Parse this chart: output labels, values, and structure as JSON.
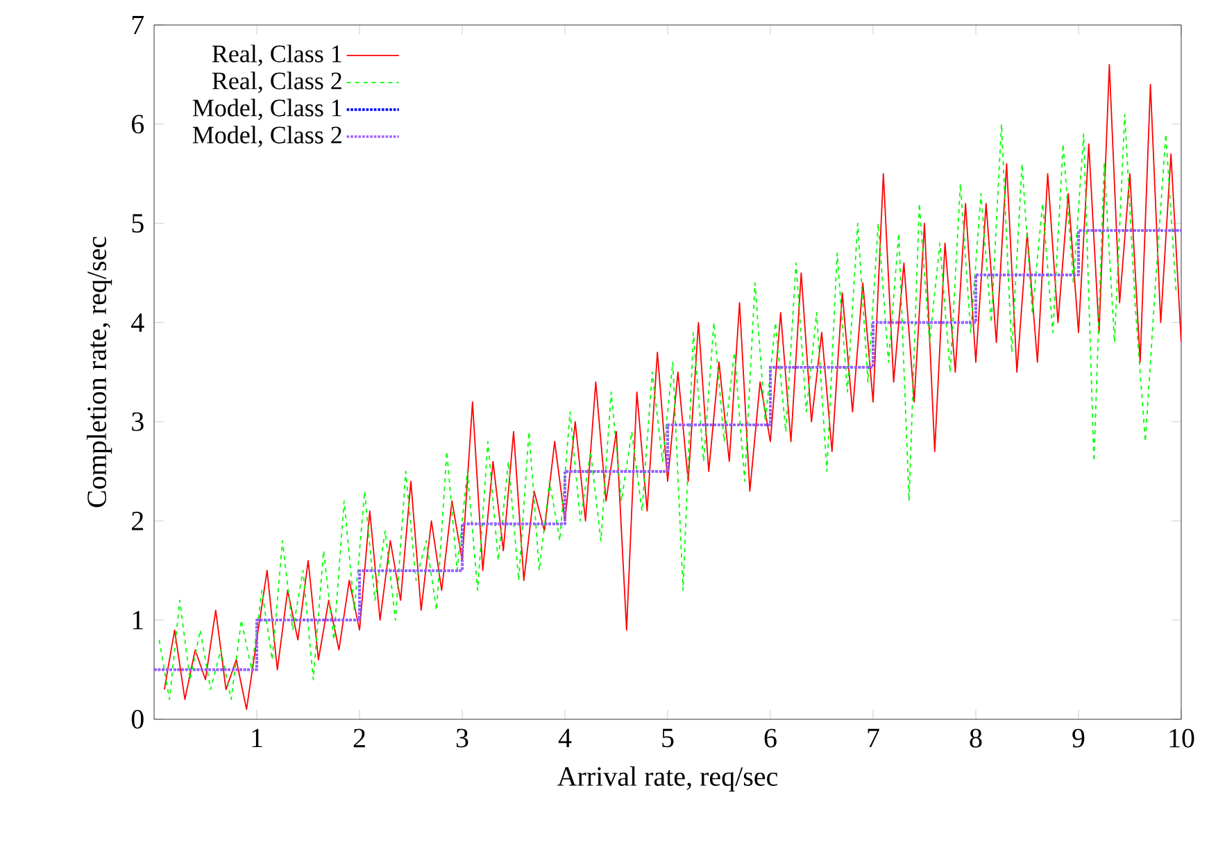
{
  "chart_data": {
    "type": "line",
    "xlabel": "Arrival rate, req/sec",
    "ylabel": "Completion rate, req/sec",
    "xlim": [
      0,
      10
    ],
    "ylim": [
      0,
      7
    ],
    "xticks": [
      1,
      2,
      3,
      4,
      5,
      6,
      7,
      8,
      9,
      10
    ],
    "yticks": [
      0,
      1,
      2,
      3,
      4,
      5,
      6,
      7
    ],
    "legend": "top left",
    "grid": false,
    "series": [
      {
        "name": "Real, Class 1",
        "color": "#ff0000",
        "line_style": "solid",
        "x": [
          0.1,
          0.2,
          0.3,
          0.4,
          0.5,
          0.6,
          0.7,
          0.8,
          0.9,
          1.0,
          1.1,
          1.2,
          1.3,
          1.4,
          1.5,
          1.6,
          1.7,
          1.8,
          1.9,
          2.0,
          2.1,
          2.2,
          2.3,
          2.4,
          2.5,
          2.6,
          2.7,
          2.8,
          2.9,
          3.0,
          3.1,
          3.2,
          3.3,
          3.4,
          3.5,
          3.6,
          3.7,
          3.8,
          3.9,
          4.0,
          4.1,
          4.2,
          4.3,
          4.4,
          4.5,
          4.6,
          4.7,
          4.8,
          4.9,
          5.0,
          5.1,
          5.2,
          5.3,
          5.4,
          5.5,
          5.6,
          5.7,
          5.8,
          5.9,
          6.0,
          6.1,
          6.2,
          6.3,
          6.4,
          6.5,
          6.6,
          6.7,
          6.8,
          6.9,
          7.0,
          7.1,
          7.2,
          7.3,
          7.4,
          7.5,
          7.6,
          7.7,
          7.8,
          7.9,
          8.0,
          8.1,
          8.2,
          8.3,
          8.4,
          8.5,
          8.6,
          8.7,
          8.8,
          8.9,
          9.0,
          9.1,
          9.2,
          9.3,
          9.4,
          9.5,
          9.6,
          9.7,
          9.8,
          9.9,
          10.0
        ],
        "values": [
          0.3,
          0.9,
          0.2,
          0.7,
          0.4,
          1.1,
          0.3,
          0.6,
          0.1,
          0.8,
          1.5,
          0.5,
          1.3,
          0.8,
          1.6,
          0.6,
          1.2,
          0.7,
          1.4,
          0.9,
          2.1,
          1.0,
          1.8,
          1.2,
          2.4,
          1.1,
          2.0,
          1.3,
          2.2,
          1.6,
          3.2,
          1.5,
          2.6,
          1.7,
          2.9,
          1.4,
          2.3,
          1.9,
          2.8,
          2.0,
          3.0,
          2.0,
          3.4,
          2.2,
          2.9,
          0.9,
          3.3,
          2.1,
          3.7,
          2.4,
          3.5,
          2.4,
          4.0,
          2.5,
          3.6,
          2.6,
          4.2,
          2.3,
          3.4,
          2.8,
          4.1,
          2.8,
          4.5,
          3.0,
          3.9,
          2.7,
          4.3,
          3.1,
          4.4,
          3.2,
          5.5,
          3.4,
          4.6,
          3.2,
          5.0,
          2.7,
          4.8,
          3.5,
          5.2,
          3.6,
          5.2,
          3.8,
          5.6,
          3.5,
          4.9,
          3.6,
          5.5,
          4.0,
          5.3,
          3.9,
          5.8,
          3.9,
          6.6,
          4.2,
          5.5,
          3.6,
          6.4,
          4.0,
          5.7,
          3.8
        ]
      },
      {
        "name": "Real, Class 2",
        "color": "#00ff00",
        "line_style": "dashed",
        "x": [
          0.05,
          0.15,
          0.25,
          0.35,
          0.45,
          0.55,
          0.65,
          0.75,
          0.85,
          0.95,
          1.05,
          1.15,
          1.25,
          1.35,
          1.45,
          1.55,
          1.65,
          1.75,
          1.85,
          1.95,
          2.05,
          2.15,
          2.25,
          2.35,
          2.45,
          2.55,
          2.65,
          2.75,
          2.85,
          2.95,
          3.05,
          3.15,
          3.25,
          3.35,
          3.45,
          3.55,
          3.65,
          3.75,
          3.85,
          3.95,
          4.05,
          4.15,
          4.25,
          4.35,
          4.45,
          4.55,
          4.65,
          4.75,
          4.85,
          4.95,
          5.05,
          5.15,
          5.25,
          5.35,
          5.45,
          5.55,
          5.65,
          5.75,
          5.85,
          5.95,
          6.05,
          6.15,
          6.25,
          6.35,
          6.45,
          6.55,
          6.65,
          6.75,
          6.85,
          6.95,
          7.05,
          7.15,
          7.25,
          7.35,
          7.45,
          7.55,
          7.65,
          7.75,
          7.85,
          7.95,
          8.05,
          8.15,
          8.25,
          8.35,
          8.45,
          8.55,
          8.65,
          8.75,
          8.85,
          8.95,
          9.05,
          9.15,
          9.25,
          9.35,
          9.45,
          9.55,
          9.65,
          9.75,
          9.85,
          9.95
        ],
        "values": [
          0.8,
          0.2,
          1.2,
          0.4,
          0.9,
          0.3,
          0.7,
          0.2,
          1.0,
          0.5,
          1.3,
          0.6,
          1.8,
          0.9,
          1.5,
          0.4,
          1.7,
          0.8,
          2.2,
          1.1,
          2.3,
          1.2,
          1.9,
          1.0,
          2.5,
          1.4,
          1.8,
          1.1,
          2.7,
          1.5,
          2.5,
          1.3,
          2.8,
          1.6,
          2.6,
          1.4,
          2.9,
          1.5,
          2.4,
          1.8,
          3.1,
          2.0,
          2.7,
          1.8,
          3.3,
          2.2,
          2.9,
          2.1,
          3.5,
          2.6,
          3.6,
          1.3,
          3.9,
          2.6,
          4.0,
          2.8,
          3.7,
          2.4,
          4.4,
          3.0,
          4.0,
          2.9,
          4.6,
          3.1,
          4.1,
          2.5,
          4.7,
          3.3,
          5.0,
          3.4,
          5.0,
          3.6,
          4.9,
          2.2,
          5.2,
          3.8,
          4.8,
          3.5,
          5.4,
          3.9,
          5.3,
          4.0,
          6.0,
          3.7,
          5.6,
          4.1,
          5.2,
          3.9,
          5.8,
          4.4,
          5.9,
          2.6,
          5.6,
          3.8,
          6.1,
          4.2,
          2.8,
          4.4,
          5.9,
          4.3
        ]
      },
      {
        "name": "Model, Class 1",
        "type": "step",
        "color": "#0000ff",
        "line_style": "dotted",
        "x": [
          0,
          1,
          2,
          3,
          4,
          5,
          6,
          7,
          8,
          9,
          10
        ],
        "values": [
          0.5,
          1.0,
          1.5,
          1.97,
          2.5,
          2.97,
          3.55,
          4.0,
          4.48,
          4.93,
          4.93
        ]
      },
      {
        "name": "Model, Class 2",
        "type": "step",
        "color": "#a060ff",
        "line_style": "dotted",
        "x": [
          0,
          1,
          2,
          3,
          4,
          5,
          6,
          7,
          8,
          9,
          10
        ],
        "values": [
          0.5,
          1.0,
          1.5,
          1.97,
          2.5,
          2.97,
          3.55,
          4.0,
          4.48,
          4.93,
          4.93
        ]
      }
    ]
  }
}
